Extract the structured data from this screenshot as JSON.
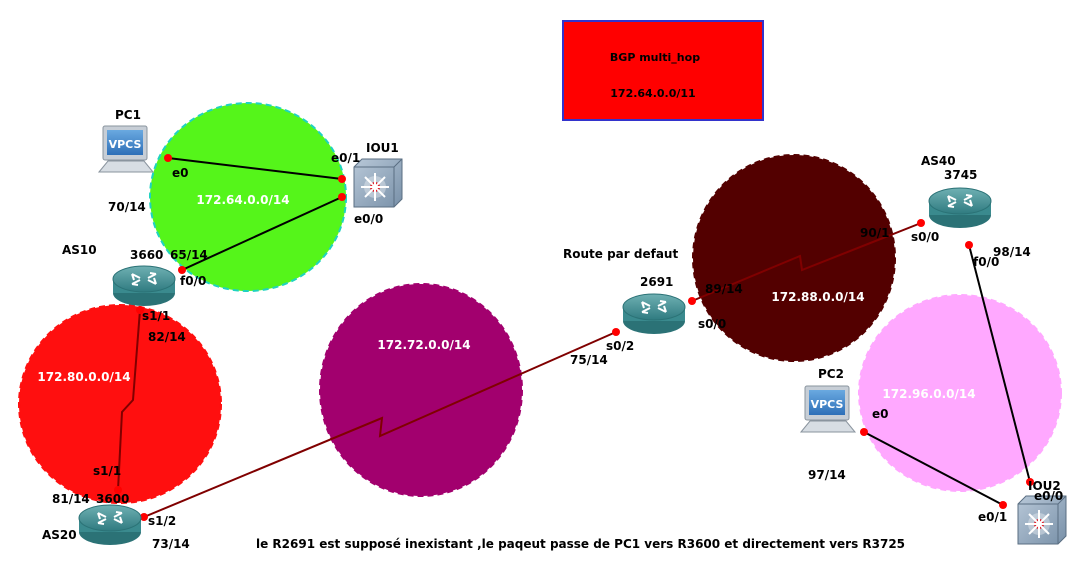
{
  "info_box": {
    "title": "BGP multi_hop",
    "network": "172.64.0.0/11",
    "fill": "#ff0000",
    "border": "#3333cc"
  },
  "networks": [
    {
      "id": "n1",
      "label": "172.64.0.0/14",
      "color": "#55f51a",
      "border": "#1fd3c0"
    },
    {
      "id": "n2",
      "label": "172.80.0.0/14",
      "color": "#ff0f0f",
      "border": "#ff0f0f"
    },
    {
      "id": "n3",
      "label": "172.72.0.0/14",
      "color": "#a2006e",
      "border": "#a2006e"
    },
    {
      "id": "n4",
      "label": "172.88.0.0/14",
      "color": "#530000",
      "border": "#530000"
    },
    {
      "id": "n5",
      "label": "172.96.0.0/14",
      "color": "#ffa8ff",
      "border": "#ffa8ff"
    }
  ],
  "devices": {
    "pc1": {
      "name": "PC1",
      "badge": "VPCS",
      "addr": "70/14"
    },
    "pc2": {
      "name": "PC2",
      "badge": "VPCS",
      "addr": "97/14"
    },
    "iou1": {
      "name": "IOU1"
    },
    "iou2": {
      "name": "IOU2"
    },
    "r3660": {
      "as": "AS10",
      "model": "3660"
    },
    "r3600": {
      "as": "AS20",
      "model": "3600"
    },
    "r2691": {
      "model": "2691",
      "note": "Route par defaut"
    },
    "r3745": {
      "as": "AS40",
      "model": "3745"
    }
  },
  "interface_labels": {
    "pc1_e0": "e0",
    "iou1_e01": "e0/1",
    "iou1_e00": "e0/0",
    "r3660_f00": "f0/0",
    "r3660_addr": "65/14",
    "r3660_s11": "s1/1",
    "r3660_s11_addr": "82/14",
    "r3600_s11": "s1/1",
    "r3600_addr": "81/14",
    "r3600_s12": "s1/2",
    "r3600_s12_addr": "73/14",
    "r2691_s02": "s0/2",
    "r2691_s02_addr": "75/14",
    "r2691_addr": "89/14",
    "r2691_s00": "s0/0",
    "r3745_addr": "90/1",
    "r3745_s00": "s0/0",
    "r3745_f00": "f0/0",
    "r3745_f00_addr": "98/14",
    "pc2_e0": "e0",
    "iou2_e01": "e0/1",
    "iou2_e00": "e0/0"
  },
  "footer_note": "le R2691 est supposé inexistant ,le paqeut passe de PC1 vers R3600 et directement vers R3725",
  "link_colors": {
    "ethernet": "#000000",
    "serial": "#800000",
    "endpoint": "#ff0000"
  }
}
